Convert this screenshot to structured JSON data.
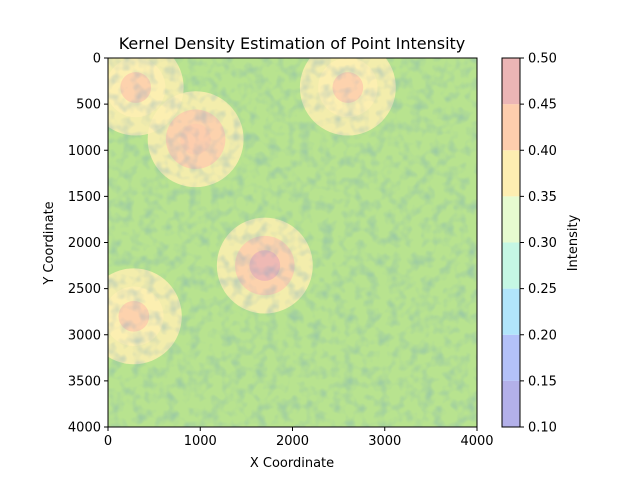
{
  "chart_data": {
    "type": "heatmap",
    "title": "Kernel Density Estimation of Point Intensity",
    "xlabel": "X Coordinate",
    "ylabel": "Y Coordinate",
    "xlim": [
      0,
      4000
    ],
    "ylim": [
      4000,
      0
    ],
    "y_axis_inverted": true,
    "x_ticks": [
      0,
      1000,
      2000,
      3000,
      4000
    ],
    "y_ticks": [
      0,
      500,
      1000,
      1500,
      2000,
      2500,
      3000,
      3500,
      4000
    ],
    "colorbar": {
      "label": "Intensity",
      "levels": [
        0.1,
        0.15,
        0.2,
        0.25,
        0.3,
        0.35,
        0.4,
        0.45,
        0.5
      ],
      "tick_labels": [
        "0.10",
        "0.15",
        "0.20",
        "0.25",
        "0.30",
        "0.35",
        "0.40",
        "0.45",
        "0.50"
      ],
      "colors": [
        "#b3b0e9",
        "#b3c1f8",
        "#b1e5fb",
        "#c5f7e4",
        "#e6fbd0",
        "#fdeeb1",
        "#fdcdad",
        "#ebb5b5"
      ]
    },
    "hotspots": [
      {
        "x": 950,
        "y": 880,
        "intensity": 0.44
      },
      {
        "x": 1700,
        "y": 2250,
        "intensity": 0.45
      },
      {
        "x": 2600,
        "y": 320,
        "intensity": 0.43
      },
      {
        "x": 280,
        "y": 2800,
        "intensity": 0.42
      },
      {
        "x": 300,
        "y": 320,
        "intensity": 0.4
      }
    ],
    "background_intensity": 0.33,
    "grid": false
  }
}
